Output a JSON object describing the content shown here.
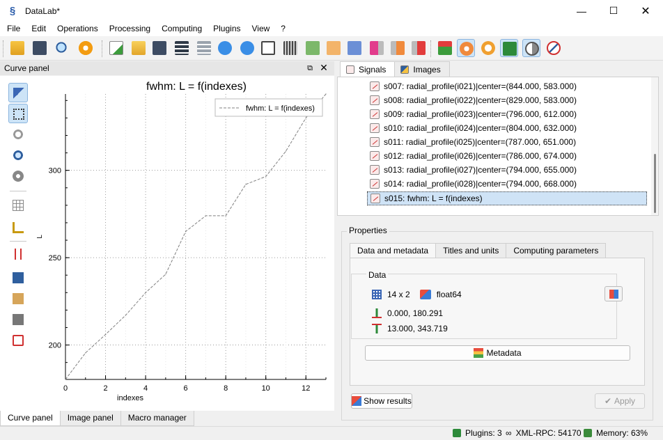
{
  "window": {
    "title": "DataLab*"
  },
  "menu": [
    "File",
    "Edit",
    "Operations",
    "Processing",
    "Computing",
    "Plugins",
    "View",
    "?"
  ],
  "curve_panel": {
    "title": "Curve panel"
  },
  "chart_data": {
    "type": "line",
    "title": "fwhm: L = f(indexes)",
    "xlabel": "indexes",
    "ylabel": "L",
    "xlim": [
      0,
      13
    ],
    "ylim": [
      180.291,
      343.719
    ],
    "x_ticks": [
      0,
      2,
      4,
      6,
      8,
      10,
      12
    ],
    "y_ticks": [
      200,
      250,
      300
    ],
    "grid": true,
    "legend_position": "top-right",
    "series": [
      {
        "name": "fwhm: L = f(indexes)",
        "color": "#808080",
        "x": [
          0,
          1,
          2,
          3,
          4,
          5,
          6,
          7,
          8,
          9,
          10,
          11,
          12,
          13
        ],
        "y": [
          180.291,
          195.5,
          206.0,
          217.0,
          230.0,
          240.5,
          265.0,
          274.0,
          274.0,
          292.0,
          296.5,
          311.0,
          330.0,
          343.719
        ]
      }
    ]
  },
  "left_tabs": [
    "Curve panel",
    "Image panel",
    "Macro manager"
  ],
  "right_tabs": [
    "Signals",
    "Images"
  ],
  "signals": [
    "s007: radial_profile(i021)|center=(844.000, 583.000)",
    "s008: radial_profile(i022)|center=(829.000, 583.000)",
    "s009: radial_profile(i023)|center=(796.000, 612.000)",
    "s010: radial_profile(i024)|center=(804.000, 632.000)",
    "s011: radial_profile(i025)|center=(787.000, 651.000)",
    "s012: radial_profile(i026)|center=(786.000, 674.000)",
    "s013: radial_profile(i027)|center=(794.000, 655.000)",
    "s014: radial_profile(i028)|center=(794.000, 668.000)",
    "s015: fwhm: L = f(indexes)"
  ],
  "selected_signal_index": 8,
  "properties": {
    "label": "Properties",
    "tabs": [
      "Data and metadata",
      "Titles and units",
      "Computing parameters"
    ],
    "data_group_label": "Data",
    "shape": "14 x 2",
    "dtype": "float64",
    "xmin_ymin": "0.000, 180.291",
    "xmax_ymax": "13.000, 343.719",
    "metadata_label": "Metadata",
    "show_results_label": "Show results",
    "apply_label": "Apply"
  },
  "status": {
    "plugins": "Plugins: 3",
    "xmlrpc": "XML-RPC: 54170",
    "memory": "Memory: 63%"
  }
}
